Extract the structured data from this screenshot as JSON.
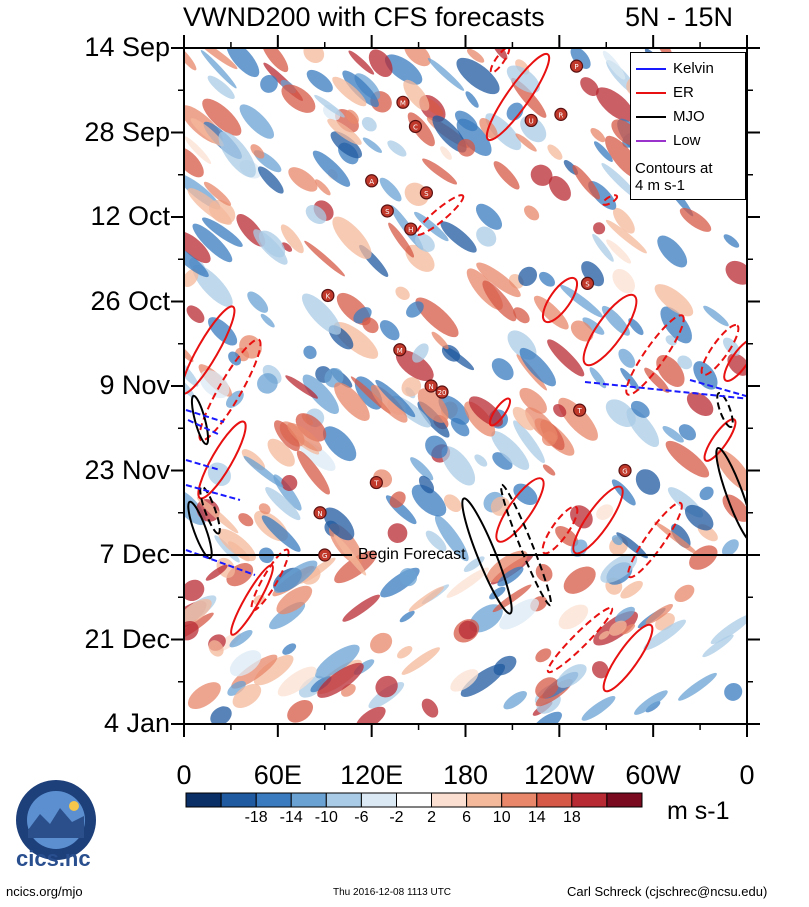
{
  "title": {
    "main": "VWND200 with CFS forecasts",
    "lat_band": "5N - 15N"
  },
  "chart_data": {
    "type": "heatmap",
    "title": "VWND200 with CFS forecasts",
    "subtitle": "5N - 15N",
    "xlabel": "Longitude",
    "ylabel": "Date",
    "x_ticks": [
      "0",
      "60E",
      "120E",
      "180",
      "120W",
      "60W",
      "0"
    ],
    "x_tick_values": [
      0,
      60,
      120,
      180,
      240,
      300,
      360
    ],
    "xlim": [
      0,
      360
    ],
    "y_ticks": [
      "14 Sep",
      "28 Sep",
      "12 Oct",
      "26 Oct",
      "9 Nov",
      "23 Nov",
      "7 Dec",
      "21 Dec",
      "4 Jan"
    ],
    "y_tick_days": [
      0,
      14,
      28,
      42,
      56,
      70,
      84,
      98,
      112
    ],
    "ylim_days": [
      0,
      112
    ],
    "forecast_start_day": 84,
    "forecast_label": "Begin Forecast",
    "colorbar": {
      "labels": [
        "-18",
        "-14",
        "-10",
        "-6",
        "-2",
        "2",
        "6",
        "10",
        "14",
        "18"
      ],
      "colors": [
        "#0a2e66",
        "#1f5aa0",
        "#3a7bbf",
        "#6aa2d3",
        "#a9cbe5",
        "#dbe9f4",
        "#ffffff",
        "#fbe0d2",
        "#f4b89b",
        "#e8876a",
        "#d65846",
        "#b82a33",
        "#7a0a1f"
      ],
      "units": "m s-1"
    },
    "legend": [
      {
        "label": "Kelvin",
        "color": "#1a1aff"
      },
      {
        "label": "ER",
        "color": "#e81010"
      },
      {
        "label": "MJO",
        "color": "#000000"
      },
      {
        "label": "Low",
        "color": "#9933cc"
      }
    ],
    "legend_note": [
      "Contours at",
      "4 m s-1"
    ],
    "storms": [
      {
        "lon": 90,
        "day": 84,
        "label": "G"
      },
      {
        "lon": 87,
        "day": 77,
        "label": "N"
      },
      {
        "lon": 123,
        "day": 72,
        "label": "T"
      },
      {
        "lon": 282,
        "day": 70,
        "label": "G"
      },
      {
        "lon": 253,
        "day": 60,
        "label": "T"
      },
      {
        "lon": 158,
        "day": 56,
        "label": "N"
      },
      {
        "lon": 165,
        "day": 57,
        "label": "20"
      },
      {
        "lon": 138,
        "day": 50,
        "label": "M"
      },
      {
        "lon": 92,
        "day": 41,
        "label": "K"
      },
      {
        "lon": 258,
        "day": 39,
        "label": "S"
      },
      {
        "lon": 145,
        "day": 30,
        "label": "H"
      },
      {
        "lon": 130,
        "day": 27,
        "label": "S"
      },
      {
        "lon": 155,
        "day": 24,
        "label": "S"
      },
      {
        "lon": 120,
        "day": 22,
        "label": "A"
      },
      {
        "lon": 148,
        "day": 13,
        "label": "C"
      },
      {
        "lon": 140,
        "day": 9,
        "label": "M"
      },
      {
        "lon": 222,
        "day": 12,
        "label": "U"
      },
      {
        "lon": 241,
        "day": 11,
        "label": "R"
      },
      {
        "lon": 251,
        "day": 3,
        "label": "P"
      }
    ]
  },
  "footer": {
    "left": "ncics.org/mjo",
    "center": "Thu 2016-12-08 1113 UTC",
    "right": "Carl Schreck (cjschrec@ncsu.edu)",
    "logo_text": "cics.nc",
    "logo_ring_text": "Cooperative Institute for Climate and Satellites"
  }
}
